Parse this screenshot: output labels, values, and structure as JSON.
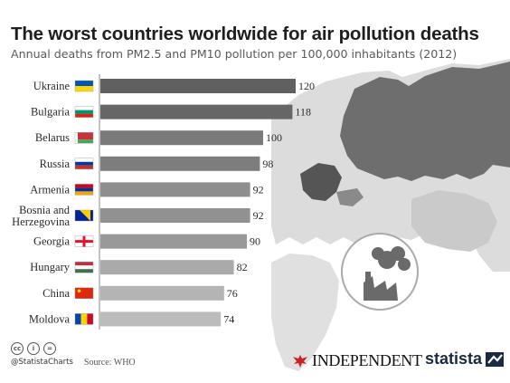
{
  "header": {
    "title": "The worst countries worldwide for air pollution deaths",
    "subtitle": "Annual deaths from PM2.5 and PM10 pollution per 100,000 inhabitants (2012)"
  },
  "chart_data": {
    "type": "bar",
    "orientation": "horizontal",
    "title": "The worst countries worldwide for air pollution deaths",
    "subtitle": "Annual deaths from PM2.5 and PM10 pollution per 100,000 inhabitants (2012)",
    "categories": [
      [
        "Ukraine"
      ],
      [
        "Bulgaria"
      ],
      [
        "Belarus"
      ],
      [
        "Russia"
      ],
      [
        "Armenia"
      ],
      [
        "Bosnia and",
        "Herzegovina"
      ],
      [
        "Georgia"
      ],
      [
        "Hungary"
      ],
      [
        "China"
      ],
      [
        "Moldova"
      ]
    ],
    "values": [
      120,
      118,
      100,
      98,
      92,
      92,
      90,
      82,
      76,
      74
    ],
    "value_labels": [
      "120",
      "118",
      "100",
      "98",
      "92",
      "92",
      "90",
      "82",
      "76",
      "74"
    ],
    "flags": [
      "ukraine",
      "bulgaria",
      "belarus",
      "russia",
      "armenia",
      "bosnia",
      "georgia",
      "hungary",
      "china",
      "moldova"
    ],
    "colors": {
      "bars": [
        "#606060",
        "#666666",
        "#7a7a7a",
        "#7d7d7d",
        "#8e8e8e",
        "#919191",
        "#999999",
        "#aaaaaa",
        "#b4b4b4",
        "#bcbcbc"
      ],
      "map_highlight": "#6a6a6a",
      "map_land": "#d8d8d8"
    },
    "xlim": [
      0,
      120
    ],
    "grid": false,
    "legend": "none"
  },
  "footer": {
    "cc_icons": [
      "cc",
      "i",
      "="
    ],
    "handle": "@StatistaCharts",
    "source": "Source: WHO"
  },
  "branding": {
    "independent": "INDEPENDENT",
    "statista": "statista"
  }
}
